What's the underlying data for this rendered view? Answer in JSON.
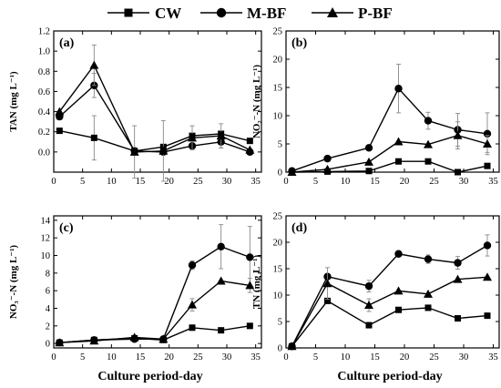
{
  "legend": [
    {
      "label": "CW",
      "marker": "square"
    },
    {
      "label": "M-BF",
      "marker": "circle"
    },
    {
      "label": "P-BF",
      "marker": "triangle"
    }
  ],
  "xlabel": "Culture period-day",
  "colors": {
    "line": "#000000",
    "errorbar": "#888888",
    "background": "#ffffff"
  },
  "chart_data": [
    {
      "type": "line",
      "panel": "(a)",
      "ylabel": "TAN (mg L⁻¹)",
      "xlim": [
        0,
        36
      ],
      "ylim": [
        -0.2,
        1.2
      ],
      "xticks": [
        0,
        5,
        10,
        15,
        20,
        25,
        30,
        35
      ],
      "yticks": [
        0.0,
        0.2,
        0.4,
        0.6,
        0.8,
        1.0,
        1.2
      ],
      "ytick_labels": [
        "0.0",
        "0.2",
        "0.4",
        "0.6",
        "0.8",
        "1.0",
        "1.2"
      ],
      "grid": false,
      "x": [
        1,
        7,
        14,
        19,
        24,
        29,
        34
      ],
      "series": [
        {
          "name": "CW",
          "marker": "square",
          "values": [
            0.21,
            0.14,
            0.01,
            0.05,
            0.16,
            0.18,
            0.11
          ],
          "errors": [
            0,
            0.22,
            0,
            0,
            0,
            0,
            0
          ]
        },
        {
          "name": "M-BF",
          "marker": "circle",
          "values": [
            0.35,
            0.66,
            0.01,
            0.0,
            0.06,
            0.1,
            0.0
          ],
          "errors": [
            0,
            0.12,
            0,
            0,
            0,
            0.06,
            0
          ]
        },
        {
          "name": "P-BF",
          "marker": "triangle",
          "values": [
            0.4,
            0.86,
            0.0,
            0.01,
            0.14,
            0.16,
            0.02
          ],
          "errors": [
            0,
            0.2,
            0.26,
            0.3,
            0.12,
            0.12,
            0
          ]
        }
      ]
    },
    {
      "type": "line",
      "panel": "(b)",
      "ylabel": "NO₂⁻-N (mg L⁻¹)",
      "xlim": [
        0,
        36
      ],
      "ylim": [
        0,
        25
      ],
      "xticks": [
        0,
        5,
        10,
        15,
        20,
        25,
        30,
        35
      ],
      "yticks": [
        0,
        5,
        10,
        15,
        20,
        25
      ],
      "ytick_labels": [
        "0",
        "5",
        "10",
        "15",
        "20",
        "25"
      ],
      "grid": false,
      "x": [
        1,
        7,
        14,
        19,
        24,
        29,
        34
      ],
      "series": [
        {
          "name": "CW",
          "marker": "square",
          "values": [
            0.0,
            0.1,
            0.2,
            1.9,
            1.9,
            0.0,
            1.1
          ],
          "errors": [
            0,
            0,
            0,
            0,
            0,
            0,
            0
          ]
        },
        {
          "name": "M-BF",
          "marker": "circle",
          "values": [
            0.2,
            2.4,
            4.3,
            14.8,
            9.1,
            7.5,
            6.8
          ],
          "errors": [
            0,
            0,
            0,
            4.3,
            1.5,
            2.9,
            3.7
          ]
        },
        {
          "name": "P-BF",
          "marker": "triangle",
          "values": [
            0.0,
            0.5,
            1.8,
            5.4,
            4.9,
            6.5,
            5.0
          ],
          "errors": [
            0,
            0,
            0,
            0,
            0,
            2.4,
            1.5
          ]
        }
      ]
    },
    {
      "type": "line",
      "panel": "(c)",
      "ylabel": "NO₃⁻-N (mg L⁻¹)",
      "xlim": [
        0,
        36
      ],
      "ylim": [
        -0.5,
        14.5
      ],
      "xticks": [
        0,
        5,
        10,
        15,
        20,
        25,
        30,
        35
      ],
      "yticks": [
        0,
        2,
        4,
        6,
        8,
        10,
        12,
        14
      ],
      "ytick_labels": [
        "0",
        "2",
        "4",
        "6",
        "8",
        "10",
        "12",
        "14"
      ],
      "grid": false,
      "x": [
        1,
        7,
        14,
        19,
        24,
        29,
        34
      ],
      "series": [
        {
          "name": "CW",
          "marker": "square",
          "values": [
            0.1,
            0.4,
            0.6,
            0.4,
            1.8,
            1.5,
            2.0
          ],
          "errors": [
            0,
            0,
            0,
            0,
            0,
            0,
            0
          ]
        },
        {
          "name": "M-BF",
          "marker": "circle",
          "values": [
            0.1,
            0.4,
            0.5,
            0.5,
            8.9,
            11.0,
            9.8
          ],
          "errors": [
            0,
            0,
            0,
            0,
            0.5,
            2.5,
            3.5
          ]
        },
        {
          "name": "P-BF",
          "marker": "triangle",
          "values": [
            0.1,
            0.3,
            0.7,
            0.5,
            4.4,
            7.1,
            6.6
          ],
          "errors": [
            0,
            0,
            0,
            0,
            0.7,
            0,
            0.8
          ]
        }
      ]
    },
    {
      "type": "line",
      "panel": "(d)",
      "ylabel": "TN (mg L⁻¹)",
      "xlim": [
        0,
        36
      ],
      "ylim": [
        0,
        25
      ],
      "xticks": [
        0,
        5,
        10,
        15,
        20,
        25,
        30,
        35
      ],
      "yticks": [
        0,
        5,
        10,
        15,
        20,
        25
      ],
      "ytick_labels": [
        "0",
        "5",
        "10",
        "15",
        "20",
        "25"
      ],
      "grid": false,
      "x": [
        1,
        7,
        14,
        19,
        24,
        29,
        34
      ],
      "series": [
        {
          "name": "CW",
          "marker": "square",
          "values": [
            0.3,
            8.9,
            4.3,
            7.2,
            7.6,
            5.6,
            6.1
          ],
          "errors": [
            0,
            0,
            0,
            0,
            0,
            0,
            0
          ]
        },
        {
          "name": "M-BF",
          "marker": "circle",
          "values": [
            0.3,
            13.5,
            11.7,
            17.8,
            16.8,
            16.1,
            19.4
          ],
          "errors": [
            0,
            0,
            1.1,
            0,
            0.8,
            1.2,
            2.0
          ]
        },
        {
          "name": "P-BF",
          "marker": "triangle",
          "values": [
            0.3,
            12.2,
            8.1,
            10.8,
            10.2,
            13.0,
            13.4
          ],
          "errors": [
            0,
            3.0,
            1.2,
            0,
            0,
            0,
            0
          ]
        }
      ]
    }
  ]
}
